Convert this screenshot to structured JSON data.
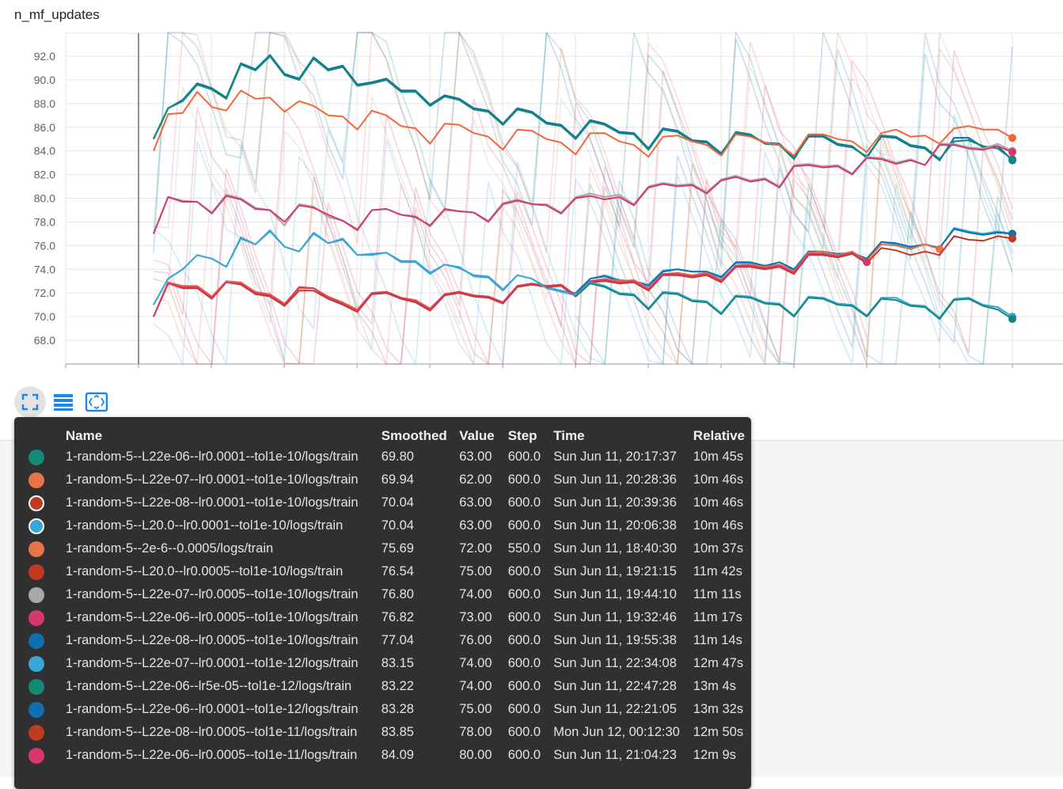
{
  "panel": {
    "title": "n_mf_updates"
  },
  "toolbar": {
    "icons": [
      "fullscreen-icon",
      "list-icon",
      "fit-domain-icon"
    ]
  },
  "tooltip": {
    "headers": {
      "name": "Name",
      "smoothed": "Smoothed",
      "value": "Value",
      "step": "Step",
      "time": "Time",
      "relative": "Relative"
    },
    "rows": [
      {
        "color": "#138a78",
        "ring": false,
        "name": "1-random-5--L22e-06--lr0.0001--tol1e-10/logs/train",
        "smoothed": "69.80",
        "value": "63.00",
        "step": "600.0",
        "time": "Sun Jun 11, 20:17:37",
        "relative": "10m 45s"
      },
      {
        "color": "#e6734a",
        "ring": false,
        "name": "1-random-5--L22e-07--lr0.0001--tol1e-10/logs/train",
        "smoothed": "69.94",
        "value": "62.00",
        "step": "600.0",
        "time": "Sun Jun 11, 20:28:36",
        "relative": "10m 46s"
      },
      {
        "color": "#bf3a1f",
        "ring": true,
        "name": "1-random-5--L22e-08--lr0.0001--tol1e-10/logs/train",
        "smoothed": "70.04",
        "value": "63.00",
        "step": "600.0",
        "time": "Sun Jun 11, 20:39:36",
        "relative": "10m 46s"
      },
      {
        "color": "#38a6d6",
        "ring": true,
        "name": "1-random-5--L20.0--lr0.0001--tol1e-10/logs/train",
        "smoothed": "70.04",
        "value": "63.00",
        "step": "600.0",
        "time": "Sun Jun 11, 20:06:38",
        "relative": "10m 46s"
      },
      {
        "color": "#e6734a",
        "ring": false,
        "name": "1-random-5--2e-6--0.0005/logs/train",
        "smoothed": "75.69",
        "value": "72.00",
        "step": "550.0",
        "time": "Sun Jun 11, 18:40:30",
        "relative": "10m 37s"
      },
      {
        "color": "#bf3a1f",
        "ring": false,
        "name": "1-random-5--L20.0--lr0.0005--tol1e-10/logs/train",
        "smoothed": "76.54",
        "value": "75.00",
        "step": "600.0",
        "time": "Sun Jun 11, 19:21:15",
        "relative": "11m 42s"
      },
      {
        "color": "#a8a8a8",
        "ring": false,
        "name": "1-random-5--L22e-07--lr0.0005--tol1e-10/logs/train",
        "smoothed": "76.80",
        "value": "74.00",
        "step": "600.0",
        "time": "Sun Jun 11, 19:44:10",
        "relative": "11m 11s"
      },
      {
        "color": "#d6386b",
        "ring": false,
        "name": "1-random-5--L22e-06--lr0.0005--tol1e-10/logs/train",
        "smoothed": "76.82",
        "value": "73.00",
        "step": "600.0",
        "time": "Sun Jun 11, 19:32:46",
        "relative": "11m 17s"
      },
      {
        "color": "#0f6fb0",
        "ring": false,
        "name": "1-random-5--L22e-08--lr0.0005--tol1e-10/logs/train",
        "smoothed": "77.04",
        "value": "76.00",
        "step": "600.0",
        "time": "Sun Jun 11, 19:55:38",
        "relative": "11m 14s"
      },
      {
        "color": "#38a6d6",
        "ring": false,
        "name": "1-random-5--L22e-07--lr0.0001--tol1e-12/logs/train",
        "smoothed": "83.15",
        "value": "74.00",
        "step": "600.0",
        "time": "Sun Jun 11, 22:34:08",
        "relative": "12m 47s"
      },
      {
        "color": "#138a78",
        "ring": false,
        "name": "1-random-5--L22e-06--lr5e-05--tol1e-12/logs/train",
        "smoothed": "83.22",
        "value": "74.00",
        "step": "600.0",
        "time": "Sun Jun 11, 22:47:28",
        "relative": "13m 4s"
      },
      {
        "color": "#0f6fb0",
        "ring": false,
        "name": "1-random-5--L22e-06--lr0.0001--tol1e-12/logs/train",
        "smoothed": "83.28",
        "value": "75.00",
        "step": "600.0",
        "time": "Sun Jun 11, 22:21:05",
        "relative": "13m 32s"
      },
      {
        "color": "#bf3a1f",
        "ring": false,
        "name": "1-random-5--L22e-08--lr0.0005--tol1e-11/logs/train",
        "smoothed": "83.85",
        "value": "78.00",
        "step": "600.0",
        "time": "Mon Jun 12, 00:12:30",
        "relative": "12m 50s"
      },
      {
        "color": "#d6386b",
        "ring": false,
        "name": "1-random-5--L22e-06--lr0.0005--tol1e-11/logs/train",
        "smoothed": "84.09",
        "value": "80.00",
        "step": "600.0",
        "time": "Sun Jun 11, 21:04:23",
        "relative": "12m 9s"
      }
    ]
  },
  "chart_data": {
    "type": "line",
    "title": "n_mf_updates",
    "ylim": [
      66.0,
      94.0
    ],
    "yticks": [
      "92.0",
      "90.0",
      "88.0",
      "86.0",
      "84.0",
      "82.0",
      "80.0",
      "78.0",
      "76.0",
      "74.0",
      "72.0",
      "70.0",
      "68.0"
    ],
    "xlim": [
      0,
      600
    ],
    "grid": true,
    "series": [
      {
        "color": "#0f6fb0",
        "width": 2.2,
        "values": [
          85,
          87.6,
          88.3,
          89.7,
          89.3,
          88.5,
          91.4,
          90.9,
          92.1,
          90.5,
          90.1,
          91.9,
          90.9,
          91.2,
          89.6,
          89.8,
          90.1,
          89.1,
          89.1,
          87.9,
          88.7,
          88.4,
          87.6,
          87.4,
          86.3,
          87.6,
          87.3,
          86.4,
          86.2,
          85.1,
          86.6,
          86.3,
          85.6,
          85.5,
          84.2,
          85.9,
          85.7,
          84.9,
          84.8,
          83.8,
          85.5,
          85.3,
          84.7,
          84.6,
          83.4,
          85.2,
          85.2,
          84.5,
          84.3,
          83.5,
          85.2,
          85.1,
          84.4,
          84.2,
          83.2,
          85.1,
          85.1,
          84.3,
          84.4,
          83.2
        ]
      },
      {
        "color": "#138a78",
        "width": 2.2,
        "values": [
          85,
          87.6,
          88.2,
          89.6,
          89.2,
          88.4,
          91.3,
          90.8,
          92.0,
          90.4,
          90.0,
          91.8,
          90.8,
          91.1,
          89.5,
          89.7,
          90.0,
          89.0,
          89.0,
          87.8,
          88.6,
          88.3,
          87.5,
          87.3,
          86.2,
          87.5,
          87.2,
          86.3,
          86.1,
          85.0,
          86.5,
          86.2,
          85.5,
          85.4,
          84.1,
          85.8,
          85.6,
          84.8,
          84.7,
          83.7,
          85.6,
          85.4,
          84.6,
          84.5,
          83.3,
          85.3,
          85.3,
          84.6,
          84.4,
          83.4,
          85.3,
          85.2,
          84.5,
          84.3,
          83.3,
          84.8,
          84.9,
          84.4,
          84.2,
          83.3
        ]
      },
      {
        "color": "#f2673a",
        "width": 2.0,
        "values": [
          84,
          87.1,
          87.2,
          89.0,
          87.7,
          87.4,
          89.1,
          88.4,
          88.5,
          87.3,
          88.2,
          87.8,
          87.0,
          86.9,
          85.8,
          87.4,
          87.0,
          86.1,
          85.9,
          84.6,
          86.3,
          86.2,
          85.5,
          85.2,
          84.1,
          85.8,
          85.7,
          85.0,
          84.7,
          83.7,
          85.5,
          85.5,
          84.8,
          84.5,
          83.5,
          85.2,
          85.3,
          84.8,
          84.5,
          83.6,
          85.4,
          85.2,
          84.7,
          84.5,
          83.6,
          85.4,
          85.4,
          85.0,
          84.8,
          83.9,
          85.5,
          85.8,
          85.2,
          85.3,
          84.6,
          85.9,
          86.1,
          85.8,
          85.8,
          85.1
        ]
      },
      {
        "color": "#a8a8a8",
        "width": 2.0,
        "values": [
          77,
          80.1,
          79.8,
          79.7,
          78.8,
          80.3,
          80.0,
          79.2,
          79.0,
          77.7,
          79.5,
          79.3,
          78.4,
          78.1,
          77.4,
          79.0,
          79.1,
          78.6,
          78.5,
          77.6,
          79.0,
          78.9,
          78.8,
          78.1,
          79.6,
          79.9,
          79.5,
          79.5,
          78.8,
          80.1,
          80.4,
          80.1,
          80.3,
          79.5,
          81.0,
          81.3,
          81.1,
          81.2,
          80.5,
          81.6,
          81.9,
          81.5,
          81.7,
          81.0,
          82.8,
          82.9,
          82.7,
          82.8,
          82.1,
          83.5,
          83.4,
          83.0,
          83.3,
          82.8,
          84.6,
          84.6,
          84.3,
          84.2,
          84.6,
          84.0
        ]
      },
      {
        "color": "#d6386b",
        "width": 2.0,
        "values": [
          77,
          80.1,
          79.7,
          79.7,
          78.7,
          80.2,
          79.9,
          79.1,
          79.0,
          78.0,
          79.4,
          79.2,
          78.6,
          78.1,
          77.3,
          79.0,
          79.1,
          78.6,
          78.4,
          77.7,
          79.1,
          78.9,
          78.8,
          78.0,
          79.5,
          79.8,
          79.5,
          79.4,
          78.7,
          80.0,
          80.2,
          79.9,
          80.1,
          79.4,
          80.9,
          81.2,
          81.0,
          81.1,
          80.4,
          81.5,
          81.8,
          81.4,
          81.6,
          80.9,
          82.7,
          82.8,
          82.6,
          82.7,
          82.0,
          83.4,
          83.3,
          82.9,
          83.2,
          82.8,
          84.5,
          84.5,
          84.2,
          84.1,
          84.4,
          83.9
        ]
      },
      {
        "color": "#38a6d6",
        "width": 2.0,
        "values": [
          71,
          73.2,
          74.0,
          75.2,
          74.9,
          74.2,
          76.7,
          76.1,
          77.3,
          75.9,
          75.5,
          77.1,
          76.2,
          76.6,
          75.2,
          75.2,
          75.4,
          74.7,
          74.7,
          73.7,
          74.4,
          74.1,
          73.5,
          73.4,
          72.3,
          73.5,
          73.2,
          72.5,
          72.2,
          72.0,
          73.2,
          73.5,
          73.1,
          73.0,
          72.7,
          73.9,
          74.0,
          73.8,
          73.8,
          73.4,
          74.5,
          74.5,
          74.3,
          74.4,
          73.9,
          75.4,
          75.4,
          75.2,
          75.4,
          74.8,
          76.3,
          76.1,
          75.8,
          76.1,
          75.8,
          77.5,
          77.2,
          77.0,
          77.2,
          77.0
        ]
      },
      {
        "color": "#0f6fb0",
        "width": 2.0,
        "values": [
          null,
          null,
          null,
          null,
          null,
          null,
          null,
          null,
          null,
          null,
          null,
          null,
          null,
          null,
          null,
          null,
          null,
          null,
          null,
          null,
          null,
          null,
          null,
          null,
          null,
          null,
          null,
          null,
          null,
          72.0,
          73.2,
          73.4,
          73.0,
          73.0,
          72.6,
          73.8,
          74.0,
          73.8,
          73.8,
          73.3,
          74.6,
          74.6,
          74.3,
          74.6,
          74.0,
          75.5,
          75.5,
          75.3,
          75.4,
          74.9,
          76.3,
          76.2,
          75.9,
          76.1,
          75.8,
          77.4,
          77.1,
          76.9,
          77.1,
          77.0
        ]
      },
      {
        "color": "#e6734a",
        "width": 2.0,
        "values": [
          70,
          72.9,
          72.6,
          72.6,
          71.7,
          73.0,
          72.9,
          72.1,
          71.9,
          71.1,
          72.4,
          72.4,
          71.7,
          71.2,
          70.6,
          72.0,
          72.1,
          71.6,
          71.4,
          70.7,
          71.9,
          72.1,
          71.8,
          71.7,
          71.2,
          72.6,
          72.8,
          72.6,
          72.7,
          71.8,
          73.0,
          73.2,
          73.0,
          73.1,
          72.4,
          73.6,
          73.7,
          73.5,
          73.7,
          73.1,
          74.3,
          74.4,
          74.2,
          74.4,
          73.8,
          75.4,
          75.5,
          75.2,
          75.5,
          74.7,
          76.1,
          76.0,
          75.7,
          76.1,
          75.7
        ]
      },
      {
        "color": "#bf3a1f",
        "width": 2.0,
        "values": [
          70,
          72.8,
          72.4,
          72.4,
          71.5,
          72.9,
          72.7,
          71.9,
          71.7,
          70.9,
          72.2,
          72.2,
          71.5,
          71.0,
          70.4,
          71.9,
          72.0,
          71.5,
          71.2,
          70.5,
          71.8,
          72.0,
          71.7,
          71.6,
          71.1,
          72.5,
          72.7,
          72.5,
          72.6,
          71.7,
          72.9,
          73.0,
          72.8,
          72.9,
          72.2,
          73.5,
          73.5,
          73.3,
          73.5,
          72.9,
          74.2,
          74.2,
          74.0,
          74.2,
          73.6,
          75.2,
          75.2,
          75.0,
          75.3,
          74.5,
          75.8,
          75.6,
          75.2,
          75.5,
          75.2,
          76.8,
          76.5,
          76.4,
          76.8,
          76.6
        ]
      },
      {
        "color": "#d6386b",
        "width": 2.0,
        "values": [
          70,
          72.8,
          72.5,
          72.5,
          71.6,
          72.9,
          72.8,
          72.0,
          71.8,
          71.0,
          72.5,
          72.4,
          71.6,
          71.1,
          70.5,
          72.0,
          72.1,
          71.6,
          71.3,
          70.6,
          71.9,
          72.1,
          71.8,
          71.7,
          71.2,
          72.6,
          72.8,
          72.6,
          72.7,
          71.8,
          73.0,
          73.1,
          72.9,
          73.0,
          72.3,
          73.6,
          73.6,
          73.4,
          73.6,
          73.0,
          74.3,
          74.3,
          74.1,
          74.3,
          73.7,
          75.3,
          75.3,
          75.1,
          75.4,
          74.6
        ]
      },
      {
        "color": "#38a6d6",
        "width": 2.0,
        "values": [
          71,
          73.2,
          74.0,
          75.2,
          74.9,
          74.2,
          76.6,
          76.1,
          77.2,
          75.9,
          75.5,
          77.0,
          76.2,
          76.5,
          75.2,
          75.3,
          75.4,
          74.6,
          74.6,
          73.6,
          74.4,
          74.2,
          73.4,
          73.3,
          72.2,
          73.5,
          73.2,
          72.4,
          72.1,
          71.8,
          72.9,
          72.6,
          72.0,
          71.9,
          70.7,
          72.1,
          72.0,
          71.4,
          71.3,
          70.3,
          71.8,
          71.7,
          71.2,
          71.1,
          70.1,
          71.7,
          71.6,
          71.1,
          71.0,
          70.1,
          71.6,
          71.6,
          71.0,
          70.9,
          69.9,
          71.5,
          71.6,
          71.0,
          70.8,
          70.0
        ]
      },
      {
        "color": "#138a78",
        "width": 2.0,
        "values": [
          null,
          null,
          null,
          null,
          null,
          null,
          null,
          null,
          null,
          null,
          null,
          null,
          null,
          null,
          null,
          null,
          null,
          null,
          null,
          null,
          null,
          null,
          null,
          null,
          null,
          null,
          null,
          null,
          null,
          71.7,
          72.8,
          72.5,
          71.9,
          71.8,
          70.6,
          72.0,
          71.9,
          71.3,
          71.2,
          70.2,
          71.7,
          71.6,
          71.1,
          71.0,
          70.0,
          71.6,
          71.5,
          71.0,
          70.9,
          70.0,
          71.5,
          71.4,
          70.9,
          70.8,
          69.8,
          71.4,
          71.5,
          70.9,
          70.6,
          69.8
        ]
      }
    ]
  }
}
